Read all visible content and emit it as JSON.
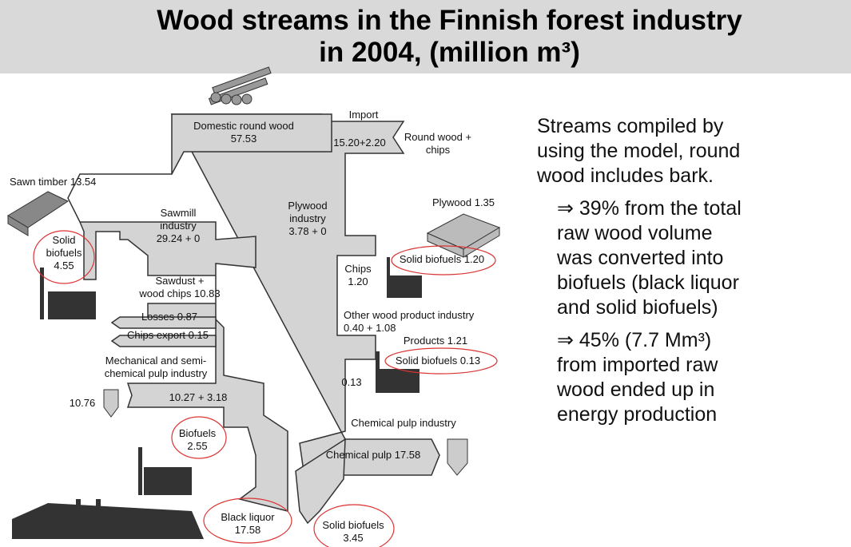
{
  "title": {
    "lines": [
      "Wood streams in the Finnish forest industry",
      "in 2004, (million m³)"
    ]
  },
  "diagram": {
    "labels": [
      {
        "lines": [
          "Import"
        ]
      },
      {
        "lines": [
          "Domestic round wood",
          "57.53"
        ]
      },
      {
        "lines": [
          "15.20+2.20"
        ]
      },
      {
        "lines": [
          "Round wood +",
          "chips"
        ]
      },
      {
        "lines": [
          "Sawn timber 13.54"
        ]
      },
      {
        "lines": [
          "Plywood 1.35"
        ]
      },
      {
        "lines": [
          "Sawmill",
          "industry",
          "29.24 + 0"
        ]
      },
      {
        "lines": [
          "Plywood",
          "industry",
          "3.78 + 0"
        ]
      },
      {
        "lines": [
          "Solid",
          "biofuels",
          "4.55"
        ]
      },
      {
        "lines": [
          "Solid biofuels 1.20"
        ]
      },
      {
        "lines": [
          "Chips",
          "1.20"
        ]
      },
      {
        "lines": [
          "Sawdust +",
          "wood chips 10.83"
        ]
      },
      {
        "lines": [
          "Other  wood product industry",
          "0.40 + 1.08"
        ]
      },
      {
        "lines": [
          "Losses 0.87"
        ]
      },
      {
        "lines": [
          "Chips export 0.15"
        ]
      },
      {
        "lines": [
          "Products 1.21"
        ]
      },
      {
        "lines": [
          "Mechanical and semi-",
          "chemical pulp industry"
        ]
      },
      {
        "lines": [
          "Solid biofuels 0.13"
        ]
      },
      {
        "lines": [
          "0.13"
        ]
      },
      {
        "lines": [
          "10.76"
        ]
      },
      {
        "lines": [
          "10.27 + 3.18"
        ]
      },
      {
        "lines": [
          "Chemical pulp industry"
        ]
      },
      {
        "lines": [
          "Biofuels",
          "2.55"
        ]
      },
      {
        "lines": [
          "Chemical pulp 17.58"
        ]
      },
      {
        "lines": [
          "Black liquor",
          "17.58"
        ]
      },
      {
        "lines": [
          "Solid biofuels",
          "3.45"
        ]
      }
    ]
  },
  "notes": {
    "intro": [
      "Streams compiled by",
      "using the model, round",
      "wood includes bark."
    ],
    "bullets": [
      {
        "lines": [
          "39% from the total",
          "raw wood volume",
          "was converted into",
          "biofuels (black liquor",
          "and solid biofuels)"
        ]
      },
      {
        "lines": [
          "45% (7.7 Mm³)",
          "from imported raw",
          "wood ended up in",
          "energy production"
        ]
      }
    ]
  }
}
